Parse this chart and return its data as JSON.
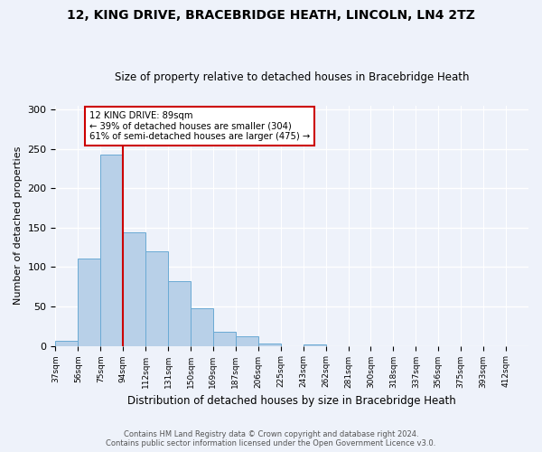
{
  "title1": "12, KING DRIVE, BRACEBRIDGE HEATH, LINCOLN, LN4 2TZ",
  "title2": "Size of property relative to detached houses in Bracebridge Heath",
  "xlabel": "Distribution of detached houses by size in Bracebridge Heath",
  "ylabel": "Number of detached properties",
  "footer1": "Contains HM Land Registry data © Crown copyright and database right 2024.",
  "footer2": "Contains public sector information licensed under the Open Government Licence v3.0.",
  "bar_labels": [
    "37sqm",
    "56sqm",
    "75sqm",
    "94sqm",
    "112sqm",
    "131sqm",
    "150sqm",
    "169sqm",
    "187sqm",
    "206sqm",
    "225sqm",
    "243sqm",
    "262sqm",
    "281sqm",
    "300sqm",
    "318sqm",
    "337sqm",
    "356sqm",
    "375sqm",
    "393sqm",
    "412sqm"
  ],
  "bar_heights": [
    6,
    111,
    243,
    144,
    120,
    82,
    48,
    18,
    12,
    3,
    0,
    2,
    0,
    0,
    0,
    0,
    0,
    0,
    0,
    0
  ],
  "bar_color": "#b8d0e8",
  "bar_edgecolor": "#6aaad4",
  "vline_color": "#cc0000",
  "annotation_text": "12 KING DRIVE: 89sqm\n← 39% of detached houses are smaller (304)\n61% of semi-detached houses are larger (475) →",
  "annotation_box_edgecolor": "#cc0000",
  "ylim": [
    0,
    305
  ],
  "yticks": [
    0,
    50,
    100,
    150,
    200,
    250,
    300
  ],
  "background_color": "#eef2fa",
  "plot_background": "#eef2fa",
  "grid_color": "#ffffff"
}
